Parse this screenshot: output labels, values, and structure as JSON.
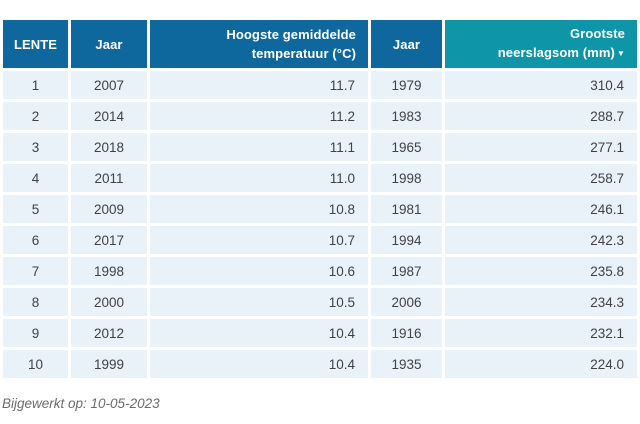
{
  "colors": {
    "header_blue": "#0f689d",
    "header_teal": "#0e96a8",
    "row_background": "#e9f1f9",
    "cell_text": "#3f4247",
    "header_text": "#ffffff",
    "footer_text": "#6b6b6b"
  },
  "table": {
    "columns": [
      {
        "key": "rank",
        "label": "LENTE",
        "align": "center"
      },
      {
        "key": "jaar_temp",
        "label": "Jaar",
        "align": "center"
      },
      {
        "key": "temperatuur",
        "label": "Hoogste gemiddelde temperatuur (°C)",
        "align": "right",
        "lines": [
          "Hoogste gemiddelde",
          "temperatuur (°C)"
        ]
      },
      {
        "key": "jaar_neerslag",
        "label": "Jaar",
        "align": "center"
      },
      {
        "key": "neerslagsom",
        "label": "Grootste neerslagsom (mm)",
        "align": "right",
        "lines": [
          "Grootste",
          "neerslagsom (mm)"
        ],
        "sort_icon": "sort-descending"
      }
    ],
    "rows": [
      [
        "1",
        "2007",
        "11.7",
        "1979",
        "310.4"
      ],
      [
        "2",
        "2014",
        "11.2",
        "1983",
        "288.7"
      ],
      [
        "3",
        "2018",
        "11.1",
        "1965",
        "277.1"
      ],
      [
        "4",
        "2011",
        "11.0",
        "1998",
        "258.7"
      ],
      [
        "5",
        "2009",
        "10.8",
        "1981",
        "246.1"
      ],
      [
        "6",
        "2017",
        "10.7",
        "1994",
        "242.3"
      ],
      [
        "7",
        "1998",
        "10.6",
        "1987",
        "235.8"
      ],
      [
        "8",
        "2000",
        "10.5",
        "2006",
        "234.3"
      ],
      [
        "9",
        "2012",
        "10.4",
        "1916",
        "232.1"
      ],
      [
        "10",
        "1999",
        "10.4",
        "1935",
        "224.0"
      ]
    ]
  },
  "footer": {
    "updated_text": "Bijgewerkt op: 10-05-2023"
  },
  "chart_data": {
    "type": "table",
    "title": "LENTE",
    "columns": [
      "LENTE",
      "Jaar",
      "Hoogste gemiddelde temperatuur (°C)",
      "Jaar",
      "Grootste neerslagsom (mm)"
    ],
    "rows": [
      [
        1,
        2007,
        11.7,
        1979,
        310.4
      ],
      [
        2,
        2014,
        11.2,
        1983,
        288.7
      ],
      [
        3,
        2018,
        11.1,
        1965,
        277.1
      ],
      [
        4,
        2011,
        11.0,
        1998,
        258.7
      ],
      [
        5,
        2009,
        10.8,
        1981,
        246.1
      ],
      [
        6,
        2017,
        10.7,
        1994,
        242.3
      ],
      [
        7,
        1998,
        10.6,
        1987,
        235.8
      ],
      [
        8,
        2000,
        10.5,
        2006,
        234.3
      ],
      [
        9,
        2012,
        10.4,
        1916,
        232.1
      ],
      [
        10,
        1999,
        10.4,
        1935,
        224.0
      ]
    ],
    "sort_indicator_column": "Grootste neerslagsom (mm)"
  }
}
